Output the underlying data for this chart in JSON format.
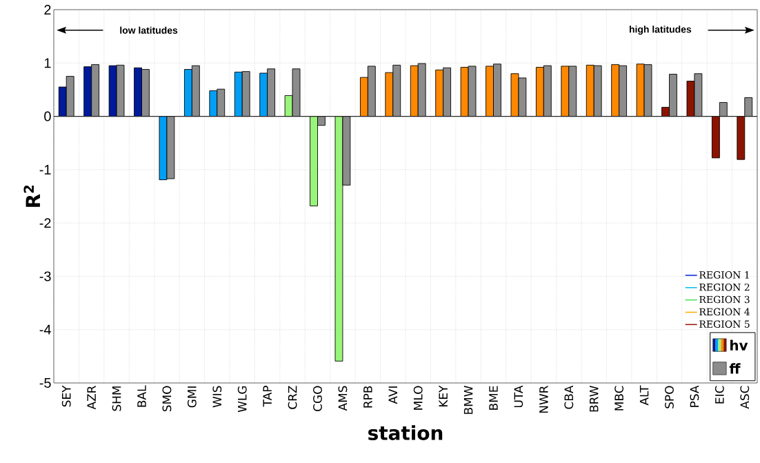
{
  "chart_data": {
    "type": "bar",
    "xlabel": "station",
    "ylabel": "R$^{2}$",
    "categories": [
      "SEY",
      "AZR",
      "SHM",
      "BAL",
      "SMO",
      "GMI",
      "WIS",
      "WLG",
      "TAP",
      "CRZ",
      "CGO",
      "AMS",
      "RPB",
      "AVI",
      "MLO",
      "KEY",
      "BMW",
      "BME",
      "UTA",
      "NWR",
      "CBA",
      "BRW",
      "MBC",
      "ALT",
      "SPO",
      "PSA",
      "EIC",
      "ASC"
    ],
    "series": [
      {
        "name": "hv",
        "colors": [
          "#001a9c",
          "#001a9c",
          "#001a9c",
          "#001a9c",
          "#009ff5",
          "#009ff5",
          "#009ff5",
          "#009ff5",
          "#009ff5",
          "#99f57a",
          "#99f57a",
          "#99f57a",
          "#ff8800",
          "#ff8800",
          "#ff8800",
          "#ff8800",
          "#ff8800",
          "#ff8800",
          "#ff8800",
          "#ff8800",
          "#ff8800",
          "#ff8800",
          "#ff8800",
          "#ff8800",
          "#8b1400",
          "#8b1400",
          "#8b1400",
          "#8b1400"
        ],
        "values": [
          0.55,
          0.93,
          0.95,
          0.91,
          -1.19,
          0.88,
          0.48,
          0.83,
          0.81,
          0.39,
          -1.68,
          -4.59,
          0.73,
          0.82,
          0.95,
          0.87,
          0.92,
          0.94,
          0.8,
          0.92,
          0.94,
          0.96,
          0.97,
          0.98,
          0.17,
          0.66,
          -0.78,
          -0.81
        ]
      },
      {
        "name": "ff",
        "color": "#8c8c8c",
        "values": [
          0.75,
          0.97,
          0.96,
          0.88,
          -1.17,
          0.95,
          0.51,
          0.84,
          0.89,
          0.89,
          -0.17,
          -1.29,
          0.94,
          0.96,
          0.99,
          0.91,
          0.94,
          0.98,
          0.72,
          0.95,
          0.94,
          0.95,
          0.95,
          0.97,
          0.79,
          0.8,
          0.26,
          0.35
        ]
      },
      {
        "name": "REGION 1",
        "type": "line",
        "color": "#0022dd",
        "values": [
          null,
          null,
          null,
          null,
          null,
          null,
          null,
          null,
          null,
          null,
          null,
          null,
          null,
          null,
          null,
          null,
          null,
          null,
          null,
          null,
          null,
          null,
          null,
          null,
          null,
          null,
          null,
          null
        ]
      },
      {
        "name": "REGION 2",
        "type": "line",
        "color": "#00bbee",
        "values": [
          null,
          null,
          null,
          null,
          null,
          null,
          null,
          null,
          null,
          null,
          null,
          null,
          null,
          null,
          null,
          null,
          null,
          null,
          null,
          null,
          null,
          null,
          null,
          null,
          null,
          null,
          null,
          null
        ]
      },
      {
        "name": "REGION 3",
        "type": "line",
        "color": "#44dd55",
        "values": [
          null,
          null,
          null,
          null,
          null,
          null,
          null,
          null,
          null,
          null,
          null,
          null,
          null,
          null,
          null,
          null,
          null,
          null,
          null,
          null,
          null,
          null,
          null,
          null,
          null,
          null,
          null,
          null
        ]
      },
      {
        "name": "REGION 4",
        "type": "line",
        "color": "#ffaa00",
        "values": [
          null,
          null,
          null,
          null,
          null,
          null,
          null,
          null,
          null,
          null,
          null,
          null,
          null,
          null,
          null,
          null,
          null,
          null,
          null,
          null,
          null,
          null,
          null,
          null,
          null,
          null,
          null,
          null
        ]
      },
      {
        "name": "REGION 5",
        "type": "line",
        "color": "#991100",
        "values": [
          null,
          null,
          null,
          null,
          null,
          null,
          null,
          null,
          null,
          null,
          null,
          null,
          null,
          null,
          null,
          null,
          null,
          null,
          null,
          null,
          null,
          null,
          null,
          null,
          null,
          null,
          null,
          null
        ]
      }
    ],
    "ylim": [
      -5,
      2
    ],
    "yticks": [
      -5,
      -4,
      -3,
      -2,
      -1,
      0,
      1,
      2
    ],
    "grid": true,
    "legend": "bottom right",
    "annotations": [
      "low latitudes",
      "high latitudes"
    ]
  }
}
